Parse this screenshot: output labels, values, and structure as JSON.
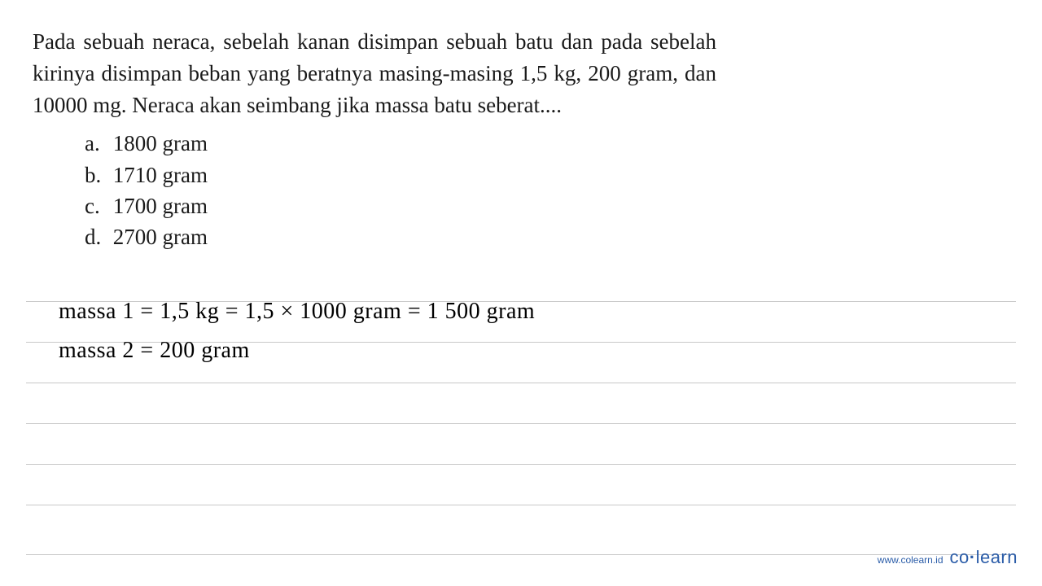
{
  "question": {
    "text": "Pada sebuah neraca, sebelah kanan disimpan sebuah batu dan pada sebelah kirinya disimpan beban yang beratnya masing-masing 1,5 kg, 200 gram, dan 10000 mg. Neraca akan seimbang jika massa batu seberat....",
    "options": [
      {
        "label": "a.",
        "value": "1800 gram"
      },
      {
        "label": "b.",
        "value": "1710 gram"
      },
      {
        "label": "c.",
        "value": "1700 gram"
      },
      {
        "label": "d.",
        "value": "2700 gram"
      }
    ]
  },
  "handwriting": {
    "line1": "massa 1 = 1,5 kg = 1,5 × 1000 gram =   1 500 gram",
    "line2": "massa 2 = 200 gram"
  },
  "styling": {
    "background_color": "#ffffff",
    "question_text_color": "#1a1a1a",
    "question_fontsize": 27,
    "handwriting_color": "#000000",
    "handwriting_fontsize": 28,
    "rule_line_color": "#c8c8c8",
    "rule_line_spacing": 49,
    "watermark_color": "#2a5ca8"
  },
  "watermark": {
    "url": "www.colearn.id",
    "brand_left": "co",
    "brand_dot": "·",
    "brand_right": "learn"
  }
}
